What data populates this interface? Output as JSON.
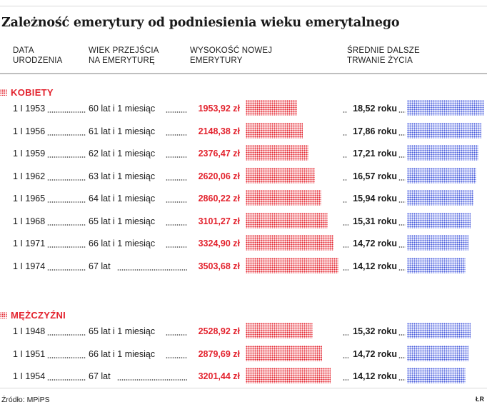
{
  "title": "Zależność emerytury od podniesienia wieku emerytalnego",
  "headers": {
    "date": "DATA\nURODZENIA",
    "age": "WIEK PRZEJŚCIA\nNA EMERYTURĘ",
    "pension": "WYSOKOŚĆ NOWEJ\nEMERYTURY",
    "life": "ŚREDNIE DALSZE\nTRWANIE ŻYCIA"
  },
  "source": "Źródło: MPiPS",
  "credit": "ŁR",
  "colors": {
    "pension": "#e3232e",
    "life": "#4759d9"
  },
  "chart_data": {
    "type": "bar",
    "series": [
      {
        "name": "WYSOKOŚĆ NOWEJ EMERYTURY"
      },
      {
        "name": "ŚREDNIE DALSZE TRWANIE ŻYCIA"
      }
    ],
    "sections": [
      {
        "title": "KOBIETY",
        "rows": [
          {
            "date": "1 I 1953",
            "age": "60 lat i 1 miesiąc",
            "pension": 1953.92,
            "pension_label": "1953,92 zł",
            "life": 18.52,
            "life_label": "18,52 roku"
          },
          {
            "date": "1 I 1956",
            "age": "61 lat i 1 miesiąc",
            "pension": 2148.38,
            "pension_label": "2148,38 zł",
            "life": 17.86,
            "life_label": "17,86 roku"
          },
          {
            "date": "1 I 1959",
            "age": "62 lat i 1 miesiąc",
            "pension": 2376.47,
            "pension_label": "2376,47 zł",
            "life": 17.21,
            "life_label": "17,21 roku"
          },
          {
            "date": "1 I 1962",
            "age": "63 lat i 1 miesiąc",
            "pension": 2620.06,
            "pension_label": "2620,06 zł",
            "life": 16.57,
            "life_label": "16,57 roku"
          },
          {
            "date": "1 I 1965",
            "age": "64 lat i 1 miesiąc",
            "pension": 2860.22,
            "pension_label": "2860,22 zł",
            "life": 15.94,
            "life_label": "15,94 roku"
          },
          {
            "date": "1 I 1968",
            "age": "65 lat i 1 miesiąc",
            "pension": 3101.27,
            "pension_label": "3101,27 zł",
            "life": 15.31,
            "life_label": "15,31 roku"
          },
          {
            "date": "1 I 1971",
            "age": "66 lat i 1 miesiąc",
            "pension": 3324.9,
            "pension_label": "3324,90 zł",
            "life": 14.72,
            "life_label": "14,72 roku"
          },
          {
            "date": "1 I 1974",
            "age": "67 lat",
            "pension": 3503.68,
            "pension_label": "3503,68 zł",
            "life": 14.12,
            "life_label": "14,12 roku"
          }
        ]
      },
      {
        "title": "MĘŻCZYŹNI",
        "rows": [
          {
            "date": "1 I 1948",
            "age": "65 lat i 1 miesiąc",
            "pension": 2528.92,
            "pension_label": "2528,92 zł",
            "life": 15.32,
            "life_label": "15,32 roku"
          },
          {
            "date": "1 I 1951",
            "age": "66 lat i 1 miesiąc",
            "pension": 2879.69,
            "pension_label": "2879,69 zł",
            "life": 14.72,
            "life_label": "14,72 roku"
          },
          {
            "date": "1 I 1954",
            "age": "67 lat",
            "pension": 3201.44,
            "pension_label": "3201,44 zł",
            "life": 14.12,
            "life_label": "14,12 roku"
          }
        ]
      }
    ]
  }
}
